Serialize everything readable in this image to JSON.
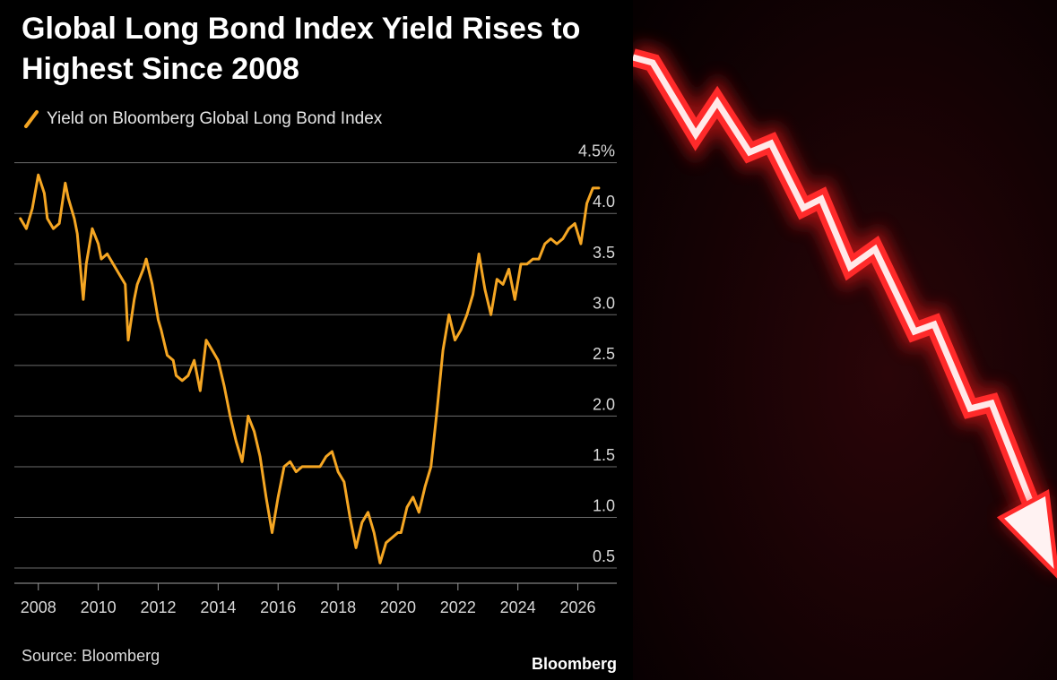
{
  "chart_data": {
    "type": "line",
    "title": "Global Long Bond Index Yield Rises to Highest Since 2008",
    "series": [
      {
        "name": "Yield on Bloomberg Global Long Bond Index",
        "color": "#f5a623",
        "x": [
          2007.4,
          2007.6,
          2007.8,
          2008.0,
          2008.2,
          2008.3,
          2008.5,
          2008.7,
          2008.9,
          2009.0,
          2009.2,
          2009.3,
          2009.5,
          2009.6,
          2009.8,
          2010.0,
          2010.1,
          2010.3,
          2010.5,
          2010.7,
          2010.9,
          2011.0,
          2011.2,
          2011.3,
          2011.5,
          2011.6,
          2011.8,
          2012.0,
          2012.1,
          2012.3,
          2012.5,
          2012.6,
          2012.8,
          2013.0,
          2013.2,
          2013.4,
          2013.6,
          2013.8,
          2014.0,
          2014.2,
          2014.4,
          2014.6,
          2014.8,
          2015.0,
          2015.2,
          2015.4,
          2015.6,
          2015.8,
          2016.0,
          2016.2,
          2016.4,
          2016.6,
          2016.8,
          2017.0,
          2017.2,
          2017.4,
          2017.6,
          2017.8,
          2018.0,
          2018.2,
          2018.4,
          2018.6,
          2018.8,
          2019.0,
          2019.2,
          2019.4,
          2019.6,
          2019.8,
          2020.0,
          2020.1,
          2020.3,
          2020.5,
          2020.7,
          2020.9,
          2021.1,
          2021.3,
          2021.5,
          2021.7,
          2021.9,
          2022.1,
          2022.3,
          2022.5,
          2022.7,
          2022.9,
          2023.1,
          2023.3,
          2023.5,
          2023.7,
          2023.9,
          2024.1,
          2024.3,
          2024.5,
          2024.7,
          2024.9,
          2025.1,
          2025.3,
          2025.5,
          2025.7,
          2025.9,
          2026.1,
          2026.3,
          2026.5,
          2026.7
        ],
        "values": [
          3.95,
          3.85,
          4.05,
          4.38,
          4.2,
          3.95,
          3.85,
          3.9,
          4.3,
          4.15,
          3.95,
          3.8,
          3.15,
          3.5,
          3.85,
          3.7,
          3.55,
          3.6,
          3.5,
          3.4,
          3.3,
          2.75,
          3.15,
          3.3,
          3.45,
          3.55,
          3.3,
          2.95,
          2.85,
          2.6,
          2.55,
          2.4,
          2.35,
          2.4,
          2.55,
          2.25,
          2.75,
          2.65,
          2.55,
          2.3,
          2.0,
          1.75,
          1.55,
          2.0,
          1.85,
          1.6,
          1.2,
          0.85,
          1.2,
          1.5,
          1.55,
          1.45,
          1.5,
          1.5,
          1.5,
          1.5,
          1.6,
          1.65,
          1.45,
          1.35,
          1.0,
          0.7,
          0.95,
          1.05,
          0.85,
          0.55,
          0.75,
          0.8,
          0.85,
          0.85,
          1.1,
          1.2,
          1.05,
          1.3,
          1.5,
          2.05,
          2.65,
          3.0,
          2.75,
          2.85,
          3.0,
          3.2,
          3.6,
          3.25,
          3.0,
          3.35,
          3.3,
          3.45,
          3.15,
          3.5,
          3.5,
          3.55,
          3.55,
          3.7,
          3.75,
          3.7,
          3.75,
          3.85,
          3.9,
          3.7,
          4.1,
          4.25,
          4.25
        ]
      }
    ],
    "x_ticks": [
      "2008",
      "2010",
      "2012",
      "2014",
      "2016",
      "2018",
      "2020",
      "2022",
      "2024",
      "2026"
    ],
    "y_ticks": [
      "0.5",
      "1.0",
      "1.5",
      "2.0",
      "2.5",
      "3.0",
      "3.5",
      "4.0",
      "4.5%"
    ],
    "xlim": [
      2007.2,
      2027.3
    ],
    "ylim": [
      0.35,
      4.55
    ],
    "xlabel": "",
    "ylabel": "",
    "grid": "horizontal",
    "legend_position": "top-left"
  },
  "footer": {
    "source": "Source: Bloomberg",
    "brand": "Bloomberg"
  },
  "colors": {
    "background": "#000000",
    "gridline": "#6b6b6b",
    "line": "#f5a623",
    "arrow": "#ff2a2a"
  },
  "decoration": {
    "icon": "falling-red-arrow-icon"
  }
}
